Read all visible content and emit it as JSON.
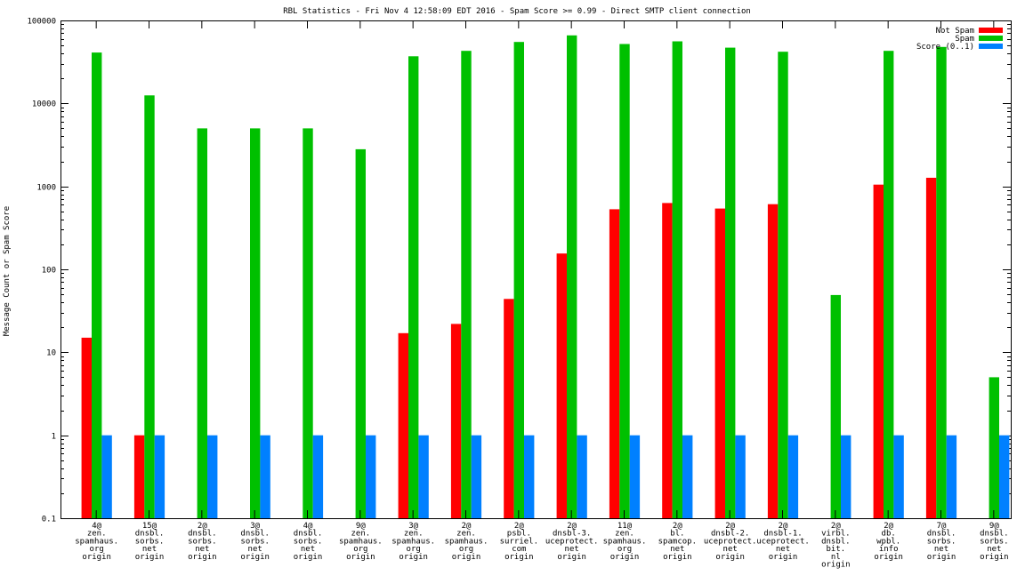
{
  "chart_data": {
    "type": "bar",
    "title": "RBL Statistics - Fri Nov  4 12:58:09 EDT 2016 - Spam Score >= 0.99 - Direct SMTP client connection",
    "ylabel": "Message Count or Spam Score",
    "xlabel": "",
    "yscale": "log",
    "ylim": [
      0.1,
      100000
    ],
    "yticks": [
      {
        "value": 0.1,
        "label": "0.1"
      },
      {
        "value": 1,
        "label": "1"
      },
      {
        "value": 10,
        "label": "10"
      },
      {
        "value": 100,
        "label": "100"
      },
      {
        "value": 1000,
        "label": "1000"
      },
      {
        "value": 10000,
        "label": "10000"
      },
      {
        "value": 100000,
        "label": "100000"
      }
    ],
    "grid": false,
    "legend_position": "top-right",
    "categories": [
      [
        "4@",
        "zen.",
        "spamhaus.",
        "org",
        "origin"
      ],
      [
        "15@",
        "dnsbl.",
        "sorbs.",
        "net",
        "origin"
      ],
      [
        "2@",
        "dnsbl.",
        "sorbs.",
        "net",
        "origin"
      ],
      [
        "3@",
        "dnsbl.",
        "sorbs.",
        "net",
        "origin"
      ],
      [
        "4@",
        "dnsbl.",
        "sorbs.",
        "net",
        "origin"
      ],
      [
        "9@",
        "zen.",
        "spamhaus.",
        "org",
        "origin"
      ],
      [
        "3@",
        "zen.",
        "spamhaus.",
        "org",
        "origin"
      ],
      [
        "2@",
        "zen.",
        "spamhaus.",
        "org",
        "origin"
      ],
      [
        "2@",
        "psbl.",
        "surriel.",
        "com",
        "origin"
      ],
      [
        "2@",
        "dnsbl-3.",
        "uceprotect.",
        "net",
        "origin"
      ],
      [
        "11@",
        "zen.",
        "spamhaus.",
        "org",
        "origin"
      ],
      [
        "2@",
        "bl.",
        "spamcop.",
        "net",
        "origin"
      ],
      [
        "2@",
        "dnsbl-2.",
        "uceprotect.",
        "net",
        "origin"
      ],
      [
        "2@",
        "dnsbl-1.",
        "uceprotect.",
        "net",
        "origin"
      ],
      [
        "2@",
        "virbl.",
        "dnsbl.",
        "bit.",
        "nl",
        "origin"
      ],
      [
        "2@",
        "db.",
        "wpbl.",
        "info",
        "origin"
      ],
      [
        "7@",
        "dnsbl.",
        "sorbs.",
        "net",
        "origin"
      ],
      [
        "9@",
        "dnsbl.",
        "sorbs.",
        "net",
        "origin"
      ]
    ],
    "series": [
      {
        "name": "Not Spam",
        "color": "#ff0000",
        "values": [
          15,
          1,
          null,
          null,
          null,
          null,
          17,
          22,
          44,
          155,
          530,
          630,
          540,
          610,
          null,
          1050,
          1270,
          null
        ]
      },
      {
        "name": "Spam",
        "color": "#00c000",
        "values": [
          41000,
          12500,
          5000,
          5000,
          5000,
          2800,
          37000,
          43000,
          55000,
          66000,
          52000,
          56000,
          47000,
          42000,
          49,
          43000,
          48000,
          5
        ]
      },
      {
        "name": "Score (0..1)",
        "color": "#0080ff",
        "values": [
          1,
          1,
          1,
          1,
          1,
          1,
          1,
          1,
          1,
          1,
          1,
          1,
          1,
          1,
          1,
          1,
          1,
          1
        ]
      }
    ]
  }
}
